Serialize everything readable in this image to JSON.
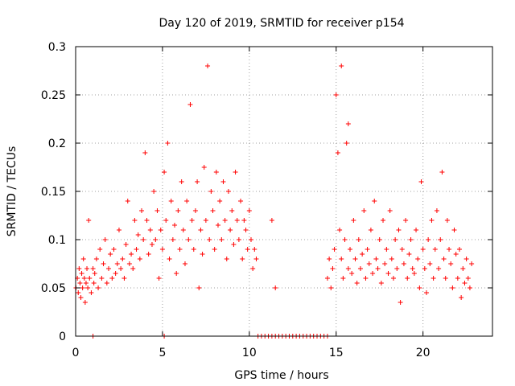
{
  "chart_data": {
    "type": "scatter",
    "title": "Day 120 of 2019, SRMTID for receiver p154",
    "xlabel": "GPS time / hours",
    "ylabel": "SRMTID / TECUs",
    "xlim": [
      0,
      24
    ],
    "ylim": [
      0,
      0.3
    ],
    "xticks": [
      0,
      5,
      10,
      15,
      20
    ],
    "yticks": [
      0,
      0.05,
      0.1,
      0.15,
      0.2,
      0.25,
      0.3
    ],
    "xtick_labels": [
      "0",
      "5",
      "10",
      "15",
      "20"
    ],
    "ytick_labels": [
      "0",
      "0.05",
      "0.1",
      "0.15",
      "0.2",
      "0.25",
      "0.3"
    ],
    "grid": true,
    "marker": "+",
    "color": "#ff0000",
    "series": [
      {
        "name": "SRMTID",
        "x": [
          0.02,
          0.1,
          0.15,
          0.2,
          0.25,
          0.3,
          0.35,
          0.4,
          0.45,
          0.5,
          0.55,
          0.6,
          0.65,
          0.7,
          0.75,
          0.8,
          0.9,
          1.0,
          1.05,
          1.1,
          1.2,
          1.3,
          1.4,
          1.5,
          1.6,
          1.7,
          1.8,
          1.9,
          2.0,
          2.1,
          2.2,
          2.3,
          2.4,
          2.5,
          2.6,
          2.7,
          2.8,
          2.9,
          3.0,
          3.1,
          3.2,
          3.3,
          3.4,
          3.5,
          3.6,
          3.7,
          3.8,
          3.9,
          4.0,
          4.1,
          4.2,
          4.3,
          4.4,
          4.5,
          4.6,
          4.7,
          4.8,
          4.9,
          5.0,
          5.1,
          5.2,
          5.3,
          5.4,
          5.5,
          5.6,
          5.7,
          5.8,
          5.9,
          6.0,
          6.1,
          6.2,
          6.3,
          6.4,
          6.5,
          6.6,
          6.7,
          6.8,
          6.9,
          7.0,
          7.1,
          7.2,
          7.3,
          7.4,
          7.5,
          7.6,
          7.7,
          7.8,
          7.9,
          8.0,
          8.1,
          8.2,
          8.3,
          8.4,
          8.5,
          8.6,
          8.7,
          8.8,
          8.9,
          9.0,
          9.1,
          9.2,
          9.3,
          9.4,
          9.5,
          9.6,
          9.7,
          9.8,
          9.9,
          10.0,
          10.1,
          10.2,
          10.3,
          10.4,
          11.3,
          11.5,
          15.3,
          15.7
        ],
        "y": [
          0.05,
          0.06,
          0.045,
          0.07,
          0.055,
          0.04,
          0.065,
          0.05,
          0.08,
          0.06,
          0.035,
          0.055,
          0.07,
          0.05,
          0.12,
          0.06,
          0.045,
          0.07,
          0.055,
          0.065,
          0.08,
          0.05,
          0.09,
          0.06,
          0.075,
          0.1,
          0.055,
          0.07,
          0.085,
          0.06,
          0.09,
          0.065,
          0.075,
          0.11,
          0.07,
          0.08,
          0.06,
          0.095,
          0.14,
          0.075,
          0.085,
          0.07,
          0.12,
          0.09,
          0.105,
          0.08,
          0.13,
          0.1,
          0.19,
          0.12,
          0.085,
          0.11,
          0.095,
          0.15,
          0.1,
          0.13,
          0.06,
          0.11,
          0.09,
          0.17,
          0.12,
          0.2,
          0.08,
          0.14,
          0.1,
          0.115,
          0.065,
          0.13,
          0.09,
          0.16,
          0.11,
          0.075,
          0.14,
          0.1,
          0.24,
          0.12,
          0.09,
          0.13,
          0.16,
          0.05,
          0.11,
          0.085,
          0.175,
          0.12,
          0.28,
          0.1,
          0.15,
          0.13,
          0.09,
          0.17,
          0.115,
          0.14,
          0.1,
          0.16,
          0.12,
          0.08,
          0.15,
          0.11,
          0.13,
          0.095,
          0.17,
          0.12,
          0.1,
          0.14,
          0.08,
          0.12,
          0.11,
          0.09,
          0.13,
          0.1,
          0.07,
          0.09,
          0.08,
          0.12,
          0.05,
          0.28,
          0.22
        ],
        "x2": [
          14.5,
          14.6,
          14.7,
          14.8,
          14.9,
          15.0,
          15.1,
          15.2,
          15.3,
          15.4,
          15.5,
          15.6,
          15.7,
          15.8,
          15.9,
          16.0,
          16.1,
          16.2,
          16.3,
          16.4,
          16.5,
          16.6,
          16.7,
          16.8,
          16.9,
          17.0,
          17.1,
          17.2,
          17.3,
          17.4,
          17.5,
          17.6,
          17.7,
          17.8,
          17.9,
          18.0,
          18.1,
          18.2,
          18.3,
          18.4,
          18.5,
          18.6,
          18.7,
          18.8,
          18.9,
          19.0,
          19.1,
          19.2,
          19.3,
          19.4,
          19.5,
          19.6,
          19.7,
          19.8,
          19.9,
          20.0,
          20.1,
          20.2,
          20.3,
          20.4,
          20.5,
          20.6,
          20.7,
          20.8,
          20.9,
          21.0,
          21.1,
          21.2,
          21.3,
          21.4,
          21.5,
          21.6,
          21.7,
          21.8,
          21.9,
          22.0,
          22.1,
          22.2,
          22.3,
          22.4,
          22.5,
          22.6,
          22.7,
          22.8
        ],
        "y2": [
          0.06,
          0.08,
          0.05,
          0.07,
          0.09,
          0.25,
          0.19,
          0.11,
          0.08,
          0.06,
          0.1,
          0.2,
          0.07,
          0.09,
          0.065,
          0.12,
          0.08,
          0.055,
          0.1,
          0.07,
          0.085,
          0.13,
          0.06,
          0.09,
          0.075,
          0.11,
          0.065,
          0.14,
          0.08,
          0.07,
          0.1,
          0.055,
          0.12,
          0.075,
          0.09,
          0.065,
          0.13,
          0.08,
          0.06,
          0.1,
          0.07,
          0.11,
          0.035,
          0.09,
          0.075,
          0.12,
          0.06,
          0.085,
          0.1,
          0.07,
          0.065,
          0.11,
          0.08,
          0.05,
          0.16,
          0.09,
          0.07,
          0.045,
          0.1,
          0.075,
          0.12,
          0.06,
          0.09,
          0.13,
          0.07,
          0.1,
          0.17,
          0.08,
          0.06,
          0.12,
          0.09,
          0.075,
          0.05,
          0.11,
          0.085,
          0.06,
          0.09,
          0.04,
          0.07,
          0.055,
          0.08,
          0.06,
          0.05,
          0.075
        ],
        "zero_x": [
          1.0,
          5.1,
          10.5,
          10.7,
          10.9,
          11.1,
          11.3,
          11.5,
          11.7,
          11.9,
          12.1,
          12.3,
          12.5,
          12.7,
          12.9,
          13.1,
          13.3,
          13.5,
          13.7,
          13.9,
          14.1,
          14.3,
          14.5
        ]
      }
    ]
  }
}
